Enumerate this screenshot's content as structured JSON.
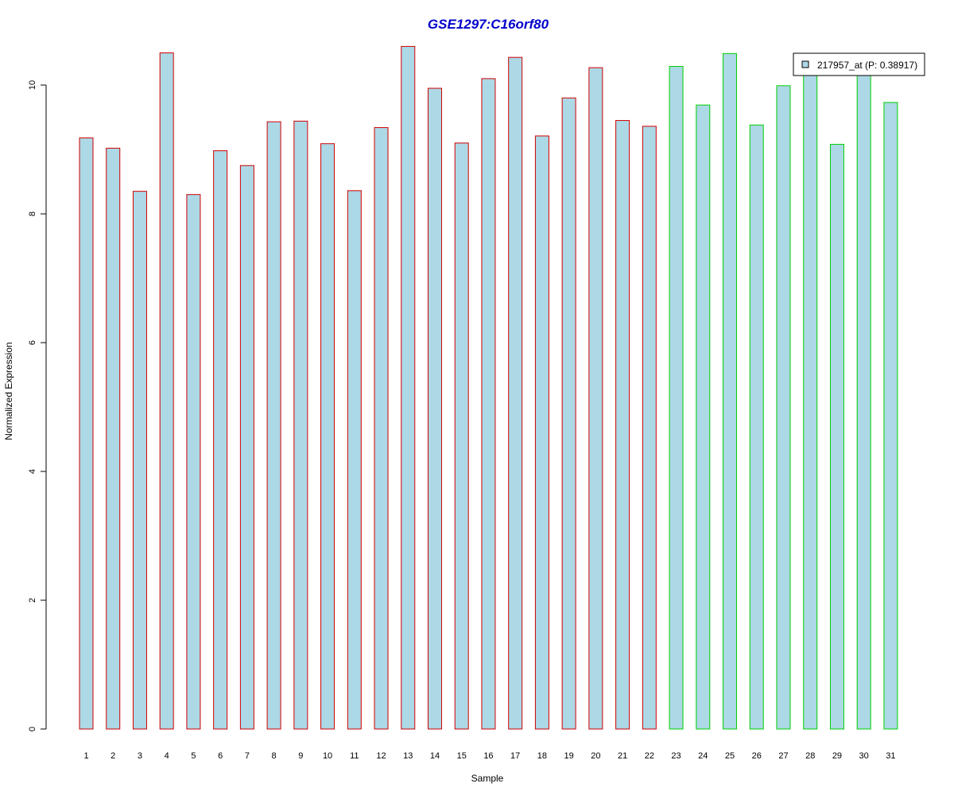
{
  "chart_data": {
    "type": "bar",
    "title": "GSE1297:C16orf80",
    "xlabel": "Sample",
    "ylabel": "Normalized Expression",
    "categories": [
      "1",
      "2",
      "3",
      "4",
      "5",
      "6",
      "7",
      "8",
      "9",
      "10",
      "11",
      "12",
      "13",
      "14",
      "15",
      "16",
      "17",
      "18",
      "19",
      "20",
      "21",
      "22",
      "23",
      "24",
      "25",
      "26",
      "27",
      "28",
      "29",
      "30",
      "31"
    ],
    "series": [
      {
        "name": "217957_at (P: 0.38917)",
        "values": [
          9.18,
          9.02,
          8.35,
          10.5,
          8.3,
          8.98,
          8.75,
          9.43,
          9.44,
          9.09,
          8.36,
          9.34,
          10.6,
          9.95,
          9.1,
          10.1,
          10.43,
          9.21,
          9.8,
          10.27,
          9.45,
          9.36,
          10.29,
          9.69,
          10.49,
          9.38,
          9.99,
          10.21,
          9.08,
          10.19,
          9.73
        ]
      }
    ],
    "group_border_colors": [
      "#d00000",
      "#d00000",
      "#d00000",
      "#d00000",
      "#d00000",
      "#d00000",
      "#d00000",
      "#d00000",
      "#d00000",
      "#d00000",
      "#d00000",
      "#d00000",
      "#d00000",
      "#d00000",
      "#d00000",
      "#d00000",
      "#d00000",
      "#d00000",
      "#d00000",
      "#d00000",
      "#d00000",
      "#d00000",
      "#00d000",
      "#00d000",
      "#00d000",
      "#00d000",
      "#00d000",
      "#00d000",
      "#00d000",
      "#00d000",
      "#00d000"
    ],
    "bar_fill": "#add8e6",
    "title_color": "#0000cc",
    "yticks": [
      "0",
      "2",
      "4",
      "6",
      "8",
      "10"
    ],
    "ylim": [
      0,
      10.6
    ],
    "grid": false,
    "legend_position": "top-right"
  }
}
